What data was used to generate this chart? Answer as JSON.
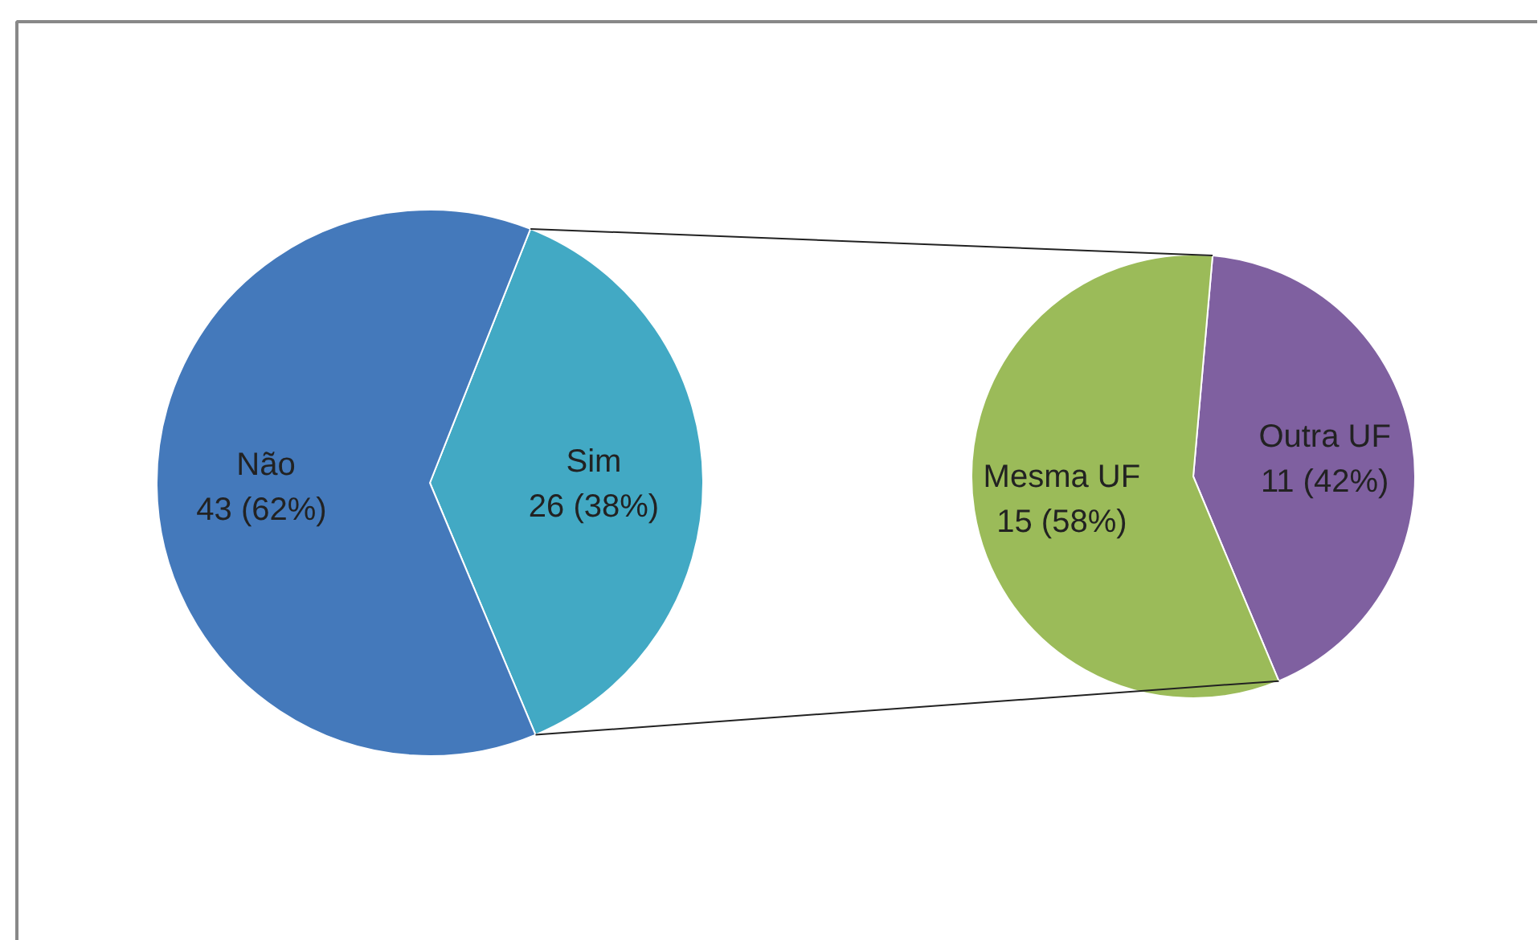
{
  "chart_data": [
    {
      "type": "pie",
      "categories": [
        "Não",
        "Sim"
      ],
      "values": [
        43,
        26
      ],
      "colors": [
        "#4479bb",
        "#42a9c4"
      ],
      "value_labels": [
        "43  (62%)",
        "26 (38%)"
      ]
    },
    {
      "type": "pie",
      "categories": [
        "Mesma UF",
        "Outra UF"
      ],
      "values": [
        15,
        11
      ],
      "colors": [
        "#9bbb59",
        "#7f60a0"
      ],
      "value_labels": [
        "15 (58%)",
        "11 (42%)"
      ]
    }
  ]
}
